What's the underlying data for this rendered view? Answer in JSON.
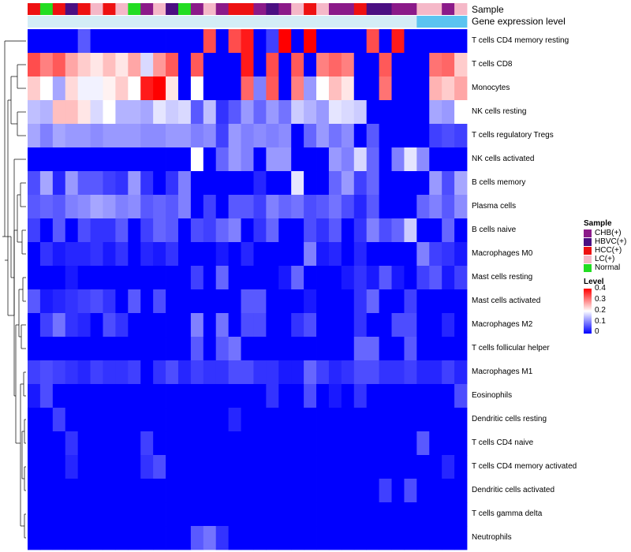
{
  "chart_data": {
    "type": "heatmap",
    "title": "",
    "annotations": {
      "sample_label": "Sample",
      "level_label": "Gene expression level"
    },
    "rows": [
      "T cells CD4 memory resting",
      "T cells CD8",
      "Monocytes",
      "NK cells resting",
      "T cells regulatory  Tregs",
      "NK cells activated",
      "B cells memory",
      "Plasma cells",
      "B cells naive",
      "Macrophages M0",
      "Mast cells resting",
      "Mast cells activated",
      "Macrophages M2",
      "T cells follicular helper",
      "Macrophages M1",
      "Eosinophils",
      "Dendritic cells resting",
      "T cells CD4 naive",
      "T cells CD4 memory activated",
      "Dendritic cells activated",
      "T cells gamma delta",
      "Neutrophils"
    ],
    "sample_groups": [
      "HCC",
      "Normal",
      "HCC",
      "HBVC",
      "HCC",
      "LC",
      "HCC",
      "LC",
      "Normal",
      "CHB",
      "LC",
      "HBVC",
      "Normal",
      "CHB",
      "LC",
      "CHB",
      "HCC",
      "HCC",
      "CHB",
      "HBVC",
      "CHB",
      "LC",
      "HCC",
      "LC",
      "CHB",
      "CHB",
      "HCC",
      "HBVC",
      "HBVC",
      "CHB",
      "CHB",
      "LC",
      "LC",
      "CHB",
      "LC"
    ],
    "sample_colors": {
      "CHB": "#8B1A89",
      "HBVC": "#4B0F82",
      "HCC": "#EE1111",
      "LC": "#F5B8C8",
      "Normal": "#22DD22"
    },
    "level_bar": [
      "#D4EDF6",
      "#D4EDF6",
      "#D4EDF6",
      "#D4EDF6",
      "#D4EDF6",
      "#D4EDF6",
      "#D4EDF6",
      "#D4EDF6",
      "#D4EDF6",
      "#D4EDF6",
      "#D4EDF6",
      "#D4EDF6",
      "#D4EDF6",
      "#D4EDF6",
      "#D4EDF6",
      "#D4EDF6",
      "#D4EDF6",
      "#D4EDF6",
      "#D4EDF6",
      "#D4EDF6",
      "#D4EDF6",
      "#D4EDF6",
      "#D4EDF6",
      "#D4EDF6",
      "#D4EDF6",
      "#D4EDF6",
      "#D4EDF6",
      "#D4EDF6",
      "#D4EDF6",
      "#D4EDF6",
      "#D4EDF6",
      "#5BC4F0",
      "#5BC4F0",
      "#5BC4F0",
      "#5BC4F0"
    ],
    "values": [
      [
        0,
        0,
        0,
        0,
        0.07,
        0,
        0,
        0,
        0,
        0,
        0,
        0,
        0,
        0,
        0.34,
        0,
        0.34,
        0.38,
        0,
        0.05,
        0.4,
        0,
        0.4,
        0,
        0,
        0,
        0,
        0.34,
        0,
        0.38,
        0,
        0,
        0,
        0,
        0
      ],
      [
        0.34,
        0.3,
        0.33,
        0.27,
        0.24,
        0.22,
        0.25,
        0.22,
        0.27,
        0.17,
        0.28,
        0.33,
        0,
        0.33,
        0,
        0,
        0,
        0.38,
        0,
        0.34,
        0,
        0.33,
        0,
        0.3,
        0.32,
        0.3,
        0,
        0,
        0.33,
        0,
        0,
        0,
        0.31,
        0.32,
        0.24
      ],
      [
        0.24,
        0.2,
        0.13,
        0.23,
        0.19,
        0.19,
        0.21,
        0.24,
        0.2,
        0.38,
        0.4,
        0.22,
        0,
        0.2,
        0,
        0,
        0,
        0.32,
        0.1,
        0.33,
        0,
        0.3,
        0.12,
        0.2,
        0.25,
        0.22,
        0,
        0,
        0.31,
        0,
        0,
        0,
        0.26,
        0.24,
        0.27
      ],
      [
        0.15,
        0.14,
        0.25,
        0.25,
        0.22,
        0.17,
        0.2,
        0.14,
        0.14,
        0.13,
        0.18,
        0.16,
        0.17,
        0.07,
        0.15,
        0.04,
        0.07,
        0.12,
        0.08,
        0.12,
        0.09,
        0.16,
        0.14,
        0.12,
        0.18,
        0.17,
        0.16,
        0,
        0,
        0,
        0,
        0,
        0.13,
        0.12,
        0.2
      ],
      [
        0.13,
        0.1,
        0.13,
        0.12,
        0.12,
        0.11,
        0.12,
        0.12,
        0.12,
        0.11,
        0.11,
        0.12,
        0.12,
        0.1,
        0.11,
        0.05,
        0.12,
        0.1,
        0.11,
        0.1,
        0.11,
        0,
        0.08,
        0.12,
        0.09,
        0.11,
        0,
        0.07,
        0,
        0,
        0,
        0,
        0.05,
        0.06,
        0.05
      ],
      [
        0,
        0,
        0,
        0,
        0,
        0,
        0,
        0,
        0,
        0,
        0,
        0,
        0,
        0.2,
        0,
        0.08,
        0.12,
        0.1,
        0,
        0.12,
        0.12,
        0,
        0,
        0,
        0.12,
        0.1,
        0.17,
        0.08,
        0,
        0.1,
        0.18,
        0.11,
        0,
        0,
        0
      ],
      [
        0.06,
        0.13,
        0.03,
        0.12,
        0.07,
        0.07,
        0.05,
        0.04,
        0.12,
        0.04,
        0,
        0.04,
        0.1,
        0,
        0,
        0,
        0,
        0,
        0.03,
        0,
        0,
        0.18,
        0,
        0,
        0.08,
        0.12,
        0.05,
        0.08,
        0,
        0,
        0,
        0,
        0.12,
        0.06,
        0.13
      ],
      [
        0.07,
        0.08,
        0.07,
        0.1,
        0.11,
        0.13,
        0.12,
        0.1,
        0.11,
        0.07,
        0.08,
        0.07,
        0.1,
        0,
        0.05,
        0,
        0.07,
        0.07,
        0.05,
        0.1,
        0.08,
        0.09,
        0.06,
        0.07,
        0.09,
        0.06,
        0.03,
        0.07,
        0,
        0,
        0,
        0.08,
        0.1,
        0.07,
        0.11
      ],
      [
        0.05,
        0,
        0.07,
        0,
        0.06,
        0.04,
        0.04,
        0.07,
        0,
        0.05,
        0.08,
        0.07,
        0,
        0.06,
        0.05,
        0.08,
        0.1,
        0,
        0.04,
        0.08,
        0,
        0,
        0.06,
        0.04,
        0.07,
        0,
        0.04,
        0.1,
        0.06,
        0.08,
        0.16,
        0,
        0,
        0.08,
        0
      ],
      [
        0,
        0.04,
        0.02,
        0.03,
        0.03,
        0.04,
        0.02,
        0.04,
        0,
        0.03,
        0.02,
        0.04,
        0,
        0,
        0,
        0.02,
        0,
        0.03,
        0,
        0,
        0,
        0,
        0.1,
        0.02,
        0.03,
        0,
        0.03,
        0,
        0,
        0,
        0,
        0.1,
        0.05,
        0.04,
        0.02
      ],
      [
        0,
        0,
        0,
        0.02,
        0,
        0,
        0,
        0,
        0,
        0,
        0,
        0,
        0,
        0.05,
        0,
        0.08,
        0,
        0,
        0,
        0,
        0.02,
        0.08,
        0,
        0,
        0,
        0.02,
        0.04,
        0.02,
        0.07,
        0.02,
        0,
        0.05,
        0.07,
        0.02,
        0.05
      ],
      [
        0.07,
        0.02,
        0.03,
        0.04,
        0.05,
        0.06,
        0.04,
        0,
        0.07,
        0,
        0.06,
        0,
        0,
        0,
        0,
        0,
        0,
        0.07,
        0.07,
        0,
        0,
        0,
        0.02,
        0,
        0,
        0,
        0.04,
        0.08,
        0,
        0,
        0.05,
        0,
        0,
        0,
        0
      ],
      [
        0,
        0.05,
        0.09,
        0.04,
        0.03,
        0,
        0.06,
        0.04,
        0,
        0,
        0,
        0,
        0,
        0.1,
        0,
        0.09,
        0,
        0.06,
        0.06,
        0,
        0,
        0.04,
        0.06,
        0,
        0,
        0,
        0.04,
        0,
        0,
        0.06,
        0.06,
        0,
        0,
        0.03,
        0
      ],
      [
        0,
        0,
        0,
        0,
        0,
        0,
        0,
        0,
        0,
        0,
        0,
        0,
        0,
        0.07,
        0,
        0.07,
        0.09,
        0,
        0,
        0,
        0,
        0,
        0,
        0,
        0,
        0,
        0.08,
        0.08,
        0,
        0,
        0.07,
        0,
        0,
        0,
        0
      ],
      [
        0.05,
        0.06,
        0.05,
        0.04,
        0.03,
        0.05,
        0.04,
        0.04,
        0.05,
        0,
        0.04,
        0.06,
        0.03,
        0.05,
        0.04,
        0.04,
        0.06,
        0.06,
        0.04,
        0.04,
        0.02,
        0.02,
        0.08,
        0.05,
        0.03,
        0.04,
        0.06,
        0.06,
        0.04,
        0.04,
        0.05,
        0.03,
        0.03,
        0.05,
        0.03
      ],
      [
        0.02,
        0.06,
        0,
        0,
        0,
        0,
        0,
        0,
        0,
        0,
        0,
        0,
        0,
        0,
        0,
        0,
        0,
        0,
        0,
        0.04,
        0,
        0,
        0.06,
        0,
        0.02,
        0,
        0.04,
        0,
        0,
        0,
        0,
        0,
        0,
        0,
        0.06
      ],
      [
        0,
        0,
        0.05,
        0,
        0,
        0,
        0,
        0,
        0,
        0,
        0,
        0,
        0,
        0,
        0,
        0,
        0.03,
        0,
        0,
        0,
        0,
        0,
        0,
        0,
        0,
        0,
        0,
        0,
        0,
        0,
        0,
        0,
        0,
        0,
        0
      ],
      [
        0,
        0,
        0,
        0.04,
        0,
        0,
        0,
        0,
        0,
        0.05,
        0,
        0,
        0,
        0,
        0,
        0,
        0,
        0,
        0,
        0,
        0,
        0,
        0,
        0,
        0,
        0,
        0,
        0,
        0,
        0,
        0,
        0.07,
        0,
        0,
        0
      ],
      [
        0,
        0,
        0,
        0.03,
        0,
        0,
        0,
        0,
        0,
        0.04,
        0.06,
        0,
        0,
        0,
        0,
        0,
        0,
        0,
        0,
        0,
        0,
        0,
        0,
        0,
        0,
        0,
        0,
        0,
        0,
        0,
        0,
        0,
        0,
        0.03,
        0
      ],
      [
        0,
        0,
        0,
        0,
        0,
        0,
        0,
        0,
        0,
        0,
        0,
        0,
        0,
        0,
        0,
        0,
        0,
        0,
        0,
        0,
        0,
        0,
        0,
        0,
        0,
        0,
        0,
        0,
        0.05,
        0,
        0.06,
        0,
        0,
        0,
        0
      ],
      [
        0,
        0,
        0,
        0,
        0,
        0,
        0,
        0,
        0,
        0,
        0,
        0,
        0,
        0,
        0,
        0,
        0,
        0,
        0,
        0,
        0,
        0,
        0,
        0,
        0,
        0,
        0,
        0,
        0,
        0,
        0,
        0,
        0,
        0,
        0
      ],
      [
        0,
        0,
        0,
        0,
        0,
        0,
        0,
        0,
        0,
        0,
        0,
        0,
        0,
        0.07,
        0.09,
        0.04,
        0,
        0,
        0,
        0,
        0,
        0,
        0,
        0,
        0,
        0,
        0,
        0,
        0,
        0,
        0,
        0,
        0,
        0,
        0
      ]
    ],
    "color_scale": {
      "min": 0,
      "max": 0.4,
      "stops": [
        "#0000FF",
        "#FFFFFF",
        "#FF0000"
      ],
      "ticks": [
        "0.4",
        "0.3",
        "0.2",
        "0.1",
        "0"
      ]
    },
    "legend": {
      "sample_title": "Sample",
      "sample_entries": [
        {
          "label": "CHB(+)",
          "color": "#8B1A89"
        },
        {
          "label": "HBVC(+)",
          "color": "#4B0F82"
        },
        {
          "label": "HCC(+)",
          "color": "#EE1111"
        },
        {
          "label": "LC(+)",
          "color": "#F5B8C8"
        },
        {
          "label": "Normal",
          "color": "#22DD22"
        }
      ],
      "level_title": "Level"
    }
  }
}
